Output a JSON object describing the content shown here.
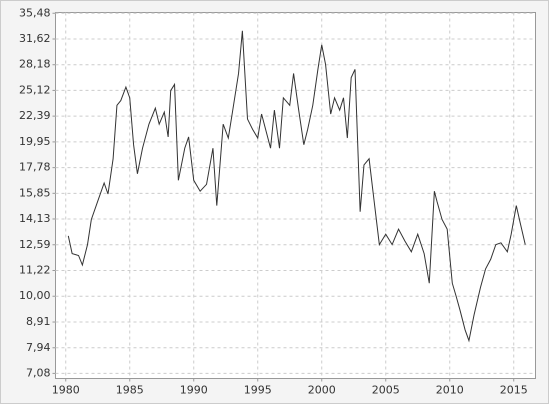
{
  "chart_data": {
    "type": "line",
    "log_y": true,
    "grid": true,
    "color": "#333333",
    "x": [
      1980.2,
      1980.5,
      1981.0,
      1981.3,
      1981.7,
      1982.0,
      1982.5,
      1983.0,
      1983.3,
      1983.7,
      1984.0,
      1984.3,
      1984.7,
      1985.0,
      1985.3,
      1985.6,
      1986.0,
      1986.5,
      1987.0,
      1987.3,
      1987.7,
      1988.0,
      1988.2,
      1988.5,
      1988.8,
      1989.3,
      1989.6,
      1990.0,
      1990.5,
      1991.0,
      1991.5,
      1991.8,
      1992.3,
      1992.7,
      1993.0,
      1993.5,
      1993.8,
      1994.2,
      1994.6,
      1995.0,
      1995.3,
      1996.0,
      1996.3,
      1996.7,
      1997.0,
      1997.5,
      1997.8,
      1998.2,
      1998.6,
      1998.9,
      1999.3,
      1999.7,
      2000.0,
      2000.3,
      2000.7,
      2001.0,
      2001.4,
      2001.7,
      2002.0,
      2002.3,
      2002.6,
      2003.0,
      2003.3,
      2003.7,
      2004.0,
      2004.5,
      2005.0,
      2005.5,
      2006.0,
      2006.5,
      2007.0,
      2007.5,
      2008.0,
      2008.4,
      2008.8,
      2009.0,
      2009.4,
      2009.8,
      2010.2,
      2010.5,
      2010.8,
      2011.2,
      2011.5,
      2011.9,
      2012.4,
      2012.8,
      2013.2,
      2013.6,
      2014.0,
      2014.5,
      2014.8,
      2015.2,
      2015.5,
      2015.9
    ],
    "values": [
      13.1,
      12.1,
      12.0,
      11.5,
      12.6,
      14.1,
      15.3,
      16.6,
      15.8,
      18.5,
      23.5,
      24.0,
      25.5,
      24.3,
      19.7,
      17.3,
      19.4,
      21.6,
      23.2,
      21.6,
      22.8,
      20.4,
      25.1,
      25.8,
      16.8,
      19.4,
      20.4,
      16.8,
      16.0,
      16.5,
      19.4,
      15.0,
      21.6,
      20.3,
      22.6,
      27.1,
      32.8,
      22.1,
      21.1,
      20.3,
      22.6,
      19.4,
      23.0,
      19.4,
      24.3,
      23.5,
      27.1,
      23.0,
      19.7,
      21.1,
      23.5,
      27.6,
      30.8,
      28.2,
      22.6,
      24.3,
      23.0,
      24.3,
      20.3,
      26.6,
      27.6,
      14.6,
      18.0,
      18.5,
      16.0,
      12.6,
      13.2,
      12.6,
      13.5,
      12.8,
      12.2,
      13.2,
      12.1,
      10.6,
      16.0,
      15.3,
      14.1,
      13.5,
      10.6,
      10.0,
      9.4,
      8.6,
      8.2,
      9.2,
      10.4,
      11.3,
      11.8,
      12.6,
      12.7,
      12.2,
      13.2,
      15.0,
      13.9,
      12.6
    ],
    "xlim": [
      1979.2,
      2016.7
    ],
    "xticks": [
      1980,
      1985,
      1990,
      1995,
      2000,
      2005,
      2010,
      2015
    ],
    "ylim": [
      6.92,
      35.6
    ],
    "yticks": [
      {
        "value": 7.08,
        "label": "7,08"
      },
      {
        "value": 7.94,
        "label": "7,94"
      },
      {
        "value": 8.91,
        "label": "8,91"
      },
      {
        "value": 10.0,
        "label": "10,00"
      },
      {
        "value": 11.22,
        "label": "11,22"
      },
      {
        "value": 12.59,
        "label": "12,59"
      },
      {
        "value": 14.13,
        "label": "14,13"
      },
      {
        "value": 15.85,
        "label": "15,85"
      },
      {
        "value": 17.78,
        "label": "17,78"
      },
      {
        "value": 19.95,
        "label": "19,95"
      },
      {
        "value": 22.39,
        "label": "22,39"
      },
      {
        "value": 25.12,
        "label": "25,12"
      },
      {
        "value": 28.18,
        "label": "28,18"
      },
      {
        "value": 31.62,
        "label": "31,62"
      },
      {
        "value": 35.48,
        "label": "35,48"
      }
    ]
  }
}
